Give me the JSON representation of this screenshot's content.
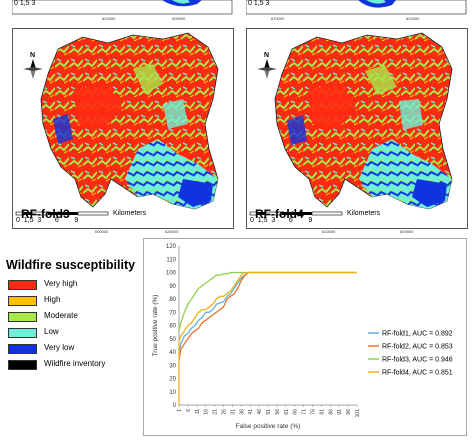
{
  "colors": {
    "very_high": "#ff2a12",
    "high": "#ffc000",
    "moderate": "#a8e84a",
    "low": "#6ff0d6",
    "very_low": "#1133dd",
    "wildfire_inventory": "#000000"
  },
  "maps": {
    "panels": [
      {
        "label": "RF-fold3",
        "north": "N",
        "scale_numbers": "0  1,5  3       6        9",
        "scale_unit": "Kilometers"
      },
      {
        "label": "RF-fold4",
        "north": "N",
        "scale_numbers": "0  1,5  3       6        9",
        "scale_unit": "Kilometers"
      }
    ],
    "top_strip": {
      "left_scale_numbers": "0  1,5  3",
      "right_scale_numbers": "0  1,5  3",
      "coords": [
        "620000",
        "500000",
        "870000",
        "620000"
      ]
    },
    "frame_coords": {
      "top": [
        "500000",
        "610000",
        "620000"
      ],
      "bottom": [
        "600000",
        "610000",
        "620000"
      ],
      "side": [
        "420000",
        "400000",
        "380000",
        "360000"
      ]
    }
  },
  "legend": {
    "title": "Wildfire susceptibility",
    "items": [
      {
        "label": "Very high",
        "color_key": "very_high"
      },
      {
        "label": "High",
        "color_key": "high"
      },
      {
        "label": "Moderate",
        "color_key": "moderate"
      },
      {
        "label": "Low",
        "color_key": "low"
      },
      {
        "label": "Very low",
        "color_key": "very_low"
      },
      {
        "label": "Wildfire inventory",
        "color_key": "wildfire_inventory"
      }
    ]
  },
  "chart_data": {
    "type": "line",
    "xlabel": "False positive rate (%)",
    "ylabel": "True positive rate (%)",
    "ylim": [
      0,
      120
    ],
    "yticks": [
      0,
      10,
      20,
      30,
      40,
      50,
      60,
      70,
      80,
      90,
      100,
      110,
      120
    ],
    "xticks": [
      1,
      6,
      11,
      16,
      21,
      26,
      31,
      36,
      41,
      46,
      51,
      56,
      61,
      66,
      71,
      76,
      81,
      86,
      91,
      96,
      101
    ],
    "xlim": [
      1,
      101
    ],
    "grid": false,
    "legend_position": "right",
    "series": [
      {
        "name": "RF-fold1, AUC = 0.892",
        "color": "#5bb3e0",
        "x": [
          1,
          2,
          4,
          6,
          8,
          10,
          12,
          14,
          16,
          18,
          20,
          22,
          26,
          28,
          30,
          32,
          34,
          36,
          38,
          40,
          101
        ],
        "y": [
          40,
          46,
          52,
          54,
          58,
          60,
          64,
          66,
          70,
          70,
          72,
          76,
          78,
          82,
          84,
          88,
          92,
          96,
          98,
          100,
          100
        ]
      },
      {
        "name": "RF-fold2, AUC = 0.853",
        "color": "#e8742c",
        "x": [
          1,
          2,
          4,
          6,
          8,
          10,
          12,
          14,
          16,
          18,
          20,
          22,
          24,
          26,
          28,
          30,
          32,
          34,
          36,
          38,
          40,
          101
        ],
        "y": [
          34,
          42,
          46,
          50,
          54,
          56,
          58,
          62,
          64,
          66,
          68,
          70,
          72,
          74,
          80,
          82,
          84,
          88,
          94,
          98,
          100,
          100
        ]
      },
      {
        "name": "RF-fold3, AUC = 0.946",
        "color": "#8ed14a",
        "x": [
          1,
          2,
          3,
          4,
          6,
          8,
          10,
          12,
          14,
          16,
          18,
          20,
          22,
          24,
          26,
          28,
          30,
          34,
          101
        ],
        "y": [
          56,
          62,
          66,
          70,
          76,
          80,
          84,
          88,
          90,
          92,
          94,
          96,
          98,
          98,
          99,
          99,
          100,
          100,
          100
        ]
      },
      {
        "name": "RF-fold4, AUC = 0.851",
        "color": "#f0b020",
        "x": [
          1,
          1,
          2,
          4,
          6,
          8,
          10,
          12,
          14,
          16,
          18,
          20,
          22,
          24,
          26,
          28,
          30,
          32,
          34,
          36,
          38,
          101
        ],
        "y": [
          0,
          48,
          52,
          56,
          60,
          62,
          66,
          70,
          72,
          72,
          74,
          76,
          80,
          82,
          82,
          84,
          86,
          90,
          94,
          98,
          100,
          100
        ]
      }
    ]
  }
}
